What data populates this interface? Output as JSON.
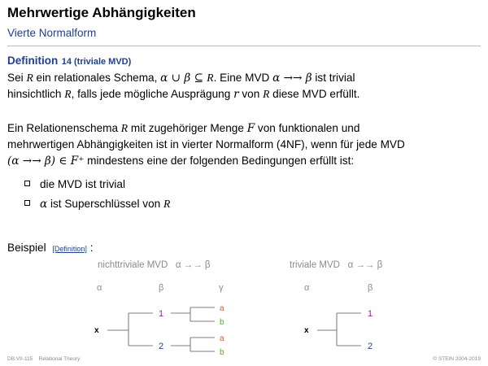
{
  "header": {
    "title": "Mehrwertige Abhängigkeiten",
    "subtitle": "Vierte Normalform"
  },
  "definition": {
    "label": "Definition",
    "number_note": "14 (triviale MVD)",
    "line1_a": "Sei ",
    "line1_R": "R",
    "line1_b": " ein relationales Schema, ",
    "line1_math": "α ∪ β ⊆ ",
    "line1_c": ". Eine MVD ",
    "line1_mvd": "α →→ β",
    "line1_d": " ist trivial",
    "line2_a": "hinsichtlich ",
    "line2_b": ", falls jede mögliche Ausprägung ",
    "line2_r": "r",
    "line2_c": " von ",
    "line2_d": " diese MVD erfüllt."
  },
  "fourth_nf": {
    "line1_a": "Ein Relationenschema ",
    "line1_b": " mit zugehöriger Menge ",
    "line1_F": "F",
    "line1_c": " von funktionalen und",
    "line2": "mehrwertigen Abhängigkeiten ist in vierter Normalform (4NF), wenn für jede MVD",
    "line3_math": "(α →→ β) ∈ F⁺",
    "line3_b": " mindestens eine der folgenden Bedingungen erfüllt ist:",
    "conditions": [
      "die MVD ist trivial",
      " ist Superschlüssel von "
    ],
    "cond2_alpha": "α"
  },
  "example": {
    "label": "Beispiel",
    "link": "[Definition]",
    "colon": " :",
    "left": {
      "caption": "nichttriviale MVD",
      "caption_math": "α →→ β",
      "columns": [
        "α",
        "β",
        "γ"
      ],
      "root": "x",
      "beta_values": [
        "1",
        "2"
      ],
      "gamma_values": [
        "a",
        "b",
        "a",
        "b"
      ]
    },
    "right": {
      "caption": "triviale MVD",
      "caption_math": "α →→ β",
      "columns": [
        "α",
        "β"
      ],
      "root": "x",
      "beta_values": [
        "1",
        "2"
      ]
    }
  },
  "colors": {
    "blue": "#1f3f8f",
    "magenta": "#9b1a9b",
    "navy": "#1f3f8f",
    "orange": "#e05a1c",
    "green": "#4caf2a",
    "gray": "#8a8a8a"
  },
  "footer": {
    "left_code": "DB:VII-115",
    "left_title": "Relational Theory",
    "right": "© STEIN 2004-2019"
  }
}
